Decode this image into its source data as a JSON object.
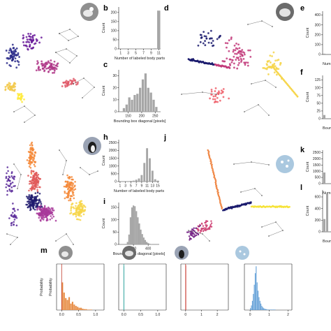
{
  "figure": {
    "panel_labels": [
      "b",
      "c",
      "d",
      "e",
      "f",
      "h",
      "i",
      "j",
      "k",
      "l",
      "m"
    ],
    "note_truncated_tick": "Numb"
  },
  "chart_data": [
    {
      "id": "b",
      "type": "bar",
      "title": "",
      "xlabel": "Number of labeled body parts",
      "ylabel": "Count",
      "x_ticks": [
        "1",
        "3",
        "5",
        "7",
        "9",
        "11"
      ],
      "y_ticks": [
        "0",
        "50",
        "100",
        "150",
        "200"
      ],
      "ylim": [
        0,
        230
      ],
      "categories": [
        "1",
        "2",
        "3",
        "4",
        "5",
        "6",
        "7",
        "8",
        "9",
        "10",
        "11"
      ],
      "values": [
        0,
        0,
        0,
        0,
        0,
        0,
        0,
        0,
        0,
        3,
        210
      ],
      "bar_color": "#a6a6a6"
    },
    {
      "id": "c",
      "type": "bar",
      "title": "",
      "xlabel": "Bounding box diagonal [pixels]",
      "ylabel": "Count",
      "x_ticks": [
        "150",
        "200",
        "250"
      ],
      "y_ticks": [
        "0",
        "10",
        "20",
        "30"
      ],
      "xlim": [
        115,
        270
      ],
      "ylim": [
        0,
        35
      ],
      "bins": [
        [
          130,
          140
        ],
        [
          140,
          150
        ],
        [
          150,
          160
        ],
        [
          160,
          170
        ],
        [
          170,
          180
        ],
        [
          180,
          190
        ],
        [
          190,
          200
        ],
        [
          200,
          210
        ],
        [
          210,
          220
        ],
        [
          220,
          230
        ],
        [
          230,
          240
        ],
        [
          240,
          250
        ],
        [
          250,
          260
        ]
      ],
      "values": [
        3,
        6,
        12,
        10,
        14,
        15,
        20,
        27,
        32,
        20,
        16,
        10,
        4
      ],
      "bar_color": "#a6a6a6"
    },
    {
      "id": "e",
      "type": "bar",
      "title": "",
      "xlabel": "Numb",
      "ylabel": "Count",
      "y_ticks": [
        "0",
        "100",
        "200",
        "300",
        "400"
      ],
      "ylim": [
        0,
        440
      ],
      "values": [
        8
      ],
      "bar_color": "#a6a6a6"
    },
    {
      "id": "f",
      "type": "bar",
      "title": "",
      "xlabel": "Bound",
      "ylabel": "Count",
      "y_ticks": [
        "0",
        "25",
        "50",
        "75",
        "100",
        "125"
      ],
      "ylim": [
        0,
        140
      ],
      "values": [
        12
      ],
      "bar_color": "#a6a6a6"
    },
    {
      "id": "h",
      "type": "bar",
      "title": "",
      "xlabel": "Number of labeled body parts",
      "ylabel": "Count",
      "x_ticks": [
        "1",
        "3",
        "5",
        "7",
        "9",
        "11",
        "13",
        "15"
      ],
      "y_ticks": [
        "0",
        "500",
        "1000",
        "1500",
        "2000",
        "2500"
      ],
      "ylim": [
        0,
        2700
      ],
      "categories": [
        "1",
        "2",
        "3",
        "4",
        "5",
        "6",
        "7",
        "8",
        "9",
        "10",
        "11",
        "12",
        "13",
        "14",
        "15"
      ],
      "values": [
        0,
        0,
        0,
        0,
        40,
        60,
        120,
        200,
        420,
        1200,
        2150,
        1500,
        700,
        150,
        60
      ],
      "bar_color": "#a6a6a6"
    },
    {
      "id": "i",
      "type": "area",
      "title": "",
      "xlabel": "Bounding box diagonal [pixels]",
      "ylabel": "Count",
      "x_ticks": [
        "200",
        "400"
      ],
      "y_ticks": [
        "0",
        "50",
        "100",
        "150"
      ],
      "xlim": [
        0,
        550
      ],
      "ylim": [
        0,
        170
      ],
      "x": [
        100,
        120,
        140,
        160,
        180,
        200,
        220,
        240,
        260,
        280,
        300,
        320,
        340,
        360,
        380,
        400,
        420,
        440
      ],
      "values": [
        2,
        10,
        40,
        110,
        150,
        158,
        155,
        135,
        110,
        85,
        60,
        42,
        28,
        18,
        10,
        6,
        3,
        1
      ],
      "bar_color": "#a6a6a6"
    },
    {
      "id": "k",
      "type": "bar",
      "title": "",
      "xlabel": "Numb",
      "ylabel": "Count",
      "y_ticks": [
        "0",
        "500",
        "1000",
        "1500",
        "2000",
        "2500"
      ],
      "ylim": [
        0,
        2700
      ],
      "values": [
        900
      ],
      "bar_color": "#a6a6a6"
    },
    {
      "id": "l",
      "type": "bar",
      "title": "",
      "xlabel": "Boun",
      "ylabel": "Count",
      "y_ticks": [
        "0",
        "200",
        "400",
        "600"
      ],
      "ylim": [
        0,
        720
      ],
      "values": [
        220,
        650
      ],
      "bar_color": "#a6a6a6"
    },
    {
      "id": "m1",
      "type": "bar",
      "title": "",
      "xlabel": "",
      "ylabel": "Probability",
      "x_ticks": [
        "0.0",
        "0.5",
        "1.0"
      ],
      "xlim": [
        -0.15,
        1.25
      ],
      "ylim": [
        0,
        1
      ],
      "bar_color": "#e8904a",
      "bins_start": 0.0,
      "bin_width": 0.05,
      "values": [
        0.6,
        0.38,
        0.26,
        0.22,
        0.28,
        0.14,
        0.18,
        0.12,
        0.09,
        0.07,
        0.05,
        0.05,
        0.03,
        0.02,
        0.02,
        0.01,
        0.01,
        0.01
      ],
      "marker_x": 0.0,
      "marker_color": "#c0392b"
    },
    {
      "id": "m2",
      "type": "bar",
      "title": "",
      "xlabel": "",
      "ylabel": "",
      "x_ticks": [
        "0.0",
        "0.5",
        "1.0"
      ],
      "xlim": [
        -0.15,
        1.25
      ],
      "ylim": [
        0,
        1
      ],
      "bar_color": "#8fd3e6",
      "bins_start": 0.0,
      "bin_width": 0.02,
      "values": [
        0.95
      ],
      "marker_x": 0.0,
      "marker_color": "#2a9d8f"
    },
    {
      "id": "m3",
      "type": "bar",
      "title": "",
      "xlabel": "",
      "ylabel": "",
      "x_ticks": [
        "0",
        "1",
        "2"
      ],
      "xlim": [
        -0.3,
        2.7
      ],
      "ylim": [
        0,
        1
      ],
      "bar_color": "#d94a4a",
      "bins_start": 0.0,
      "bin_width": 0.03,
      "values": [
        0.97
      ],
      "marker_x": 0.0,
      "marker_color": "#c0392b"
    },
    {
      "id": "m4",
      "type": "bar",
      "title": "",
      "xlabel": "",
      "ylabel": "",
      "x_ticks": [
        "0",
        "1",
        "2"
      ],
      "xlim": [
        -0.3,
        2.2
      ],
      "ylim": [
        0,
        1
      ],
      "bar_color": "#5b9bd5",
      "bins_start": 0.0,
      "bin_width": 0.05,
      "values": [
        0.04,
        0.1,
        0.2,
        0.35,
        0.55,
        0.8,
        0.95,
        0.6,
        0.42,
        0.28,
        0.2,
        0.14,
        0.09,
        0.06,
        0.04,
        0.03,
        0.02,
        0.02,
        0.01,
        0.01,
        0.01,
        0.01,
        0.01,
        0.01,
        0.01,
        0.01,
        0.01
      ],
      "marker_x": null,
      "marker_color": "#5b9bd5"
    }
  ],
  "scatter_panels": [
    {
      "id": "a",
      "colors": [
        "#2a2a8a",
        "#6a1b9a",
        "#b03a8a",
        "#e05a6a",
        "#f2c94c",
        "#ffeb3b"
      ]
    },
    {
      "id": "d",
      "colors": [
        "#1c1c6e",
        "#5a2a8a",
        "#c23a7a",
        "#ef5f6a",
        "#f6d54a"
      ]
    },
    {
      "id": "g",
      "colors": [
        "#201a6e",
        "#5b2a9a",
        "#a8389a",
        "#e05a5a",
        "#f58a3a",
        "#f7d64a"
      ]
    },
    {
      "id": "j",
      "colors": [
        "#1c1c6e",
        "#7a2a8a",
        "#d04a7a",
        "#f08a4a",
        "#f6e33a"
      ]
    }
  ]
}
